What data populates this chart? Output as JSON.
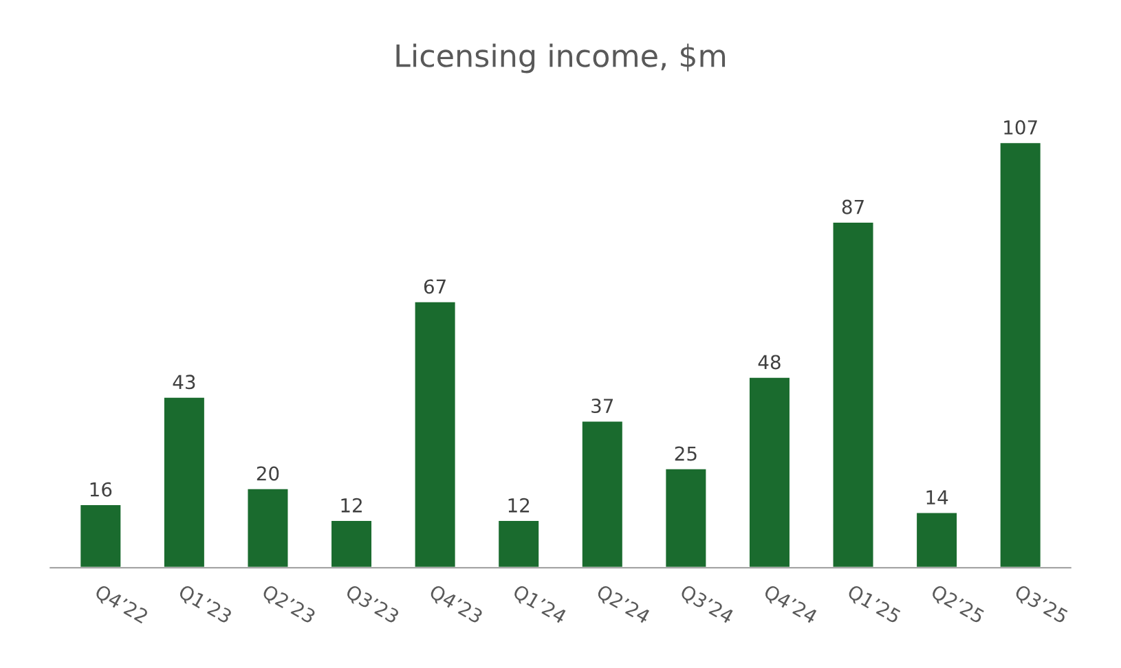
{
  "chart_data": {
    "type": "bar",
    "title": "Licensing income, $m",
    "categories": [
      "Q4’22",
      "Q1’23",
      "Q2’23",
      "Q3’23",
      "Q4’23",
      "Q1’24",
      "Q2’24",
      "Q3’24",
      "Q4’24",
      "Q1’25",
      "Q2’25",
      "Q3’25"
    ],
    "values": [
      16,
      43,
      20,
      12,
      67,
      12,
      37,
      25,
      48,
      87,
      14,
      107
    ],
    "color": "#1a6b2e",
    "data_labels": true,
    "grid": false,
    "legend": false
  }
}
